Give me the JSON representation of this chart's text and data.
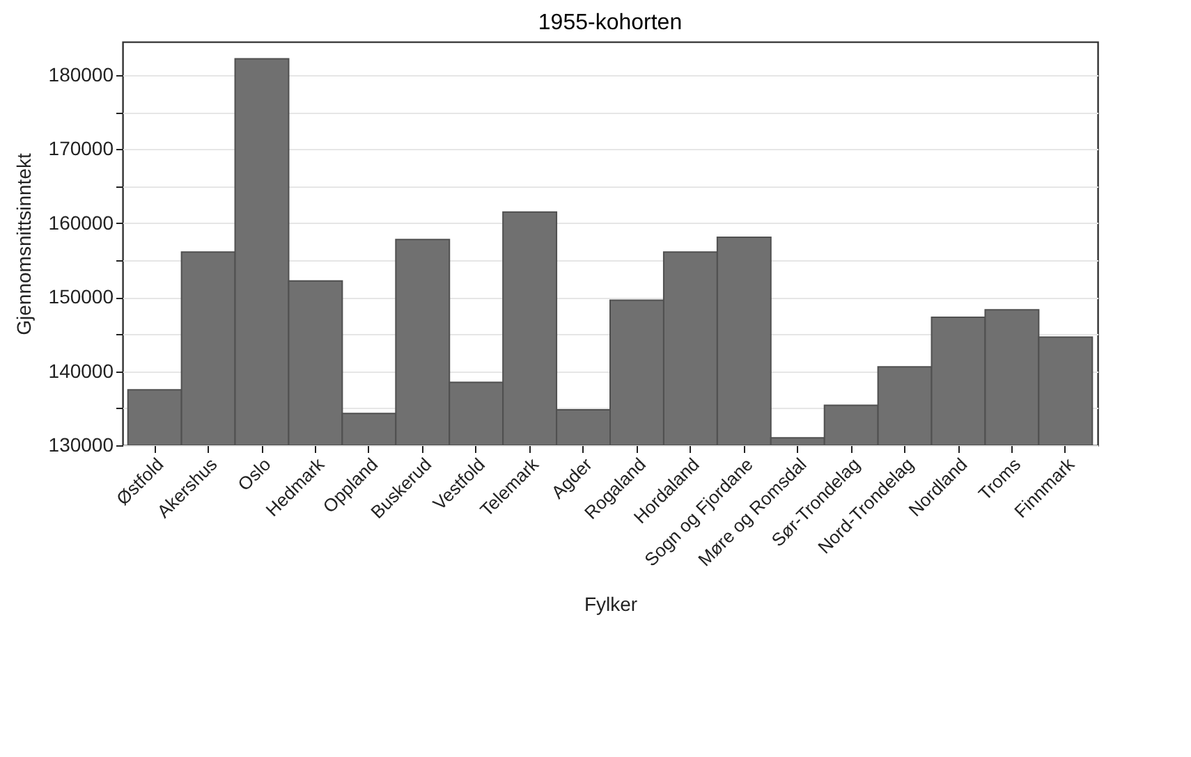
{
  "chart_data": {
    "type": "bar",
    "subtitle": "1955-kohorten",
    "xlabel": "Fylker",
    "ylabel": "Gjennomsnittsinntekt",
    "categories": [
      "Østfold",
      "Akershus",
      "Oslo",
      "Hedmark",
      "Oppland",
      "Buskerud",
      "Vestfold",
      "Telemark",
      "Agder",
      "Rogaland",
      "Hordaland",
      "Sogn og Fjordane",
      "Møre og Romsdal",
      "Sør-Trondelag",
      "Nord-Trondelag",
      "Nordland",
      "Troms",
      "Finnmark"
    ],
    "values": [
      137500,
      156100,
      182200,
      152200,
      134300,
      157800,
      138500,
      161500,
      134800,
      149600,
      156100,
      158100,
      131000,
      135400,
      140600,
      147300,
      148300,
      144600
    ],
    "color": "#707070",
    "ylim": [
      130000,
      184500
    ],
    "yticks": [
      130000,
      {
        "value": 135000,
        "label": null
      },
      140000,
      {
        "value": 145000,
        "label": null
      },
      150000,
      {
        "value": 155000,
        "label": null
      },
      160000,
      {
        "value": 165000,
        "label": null
      },
      170000,
      {
        "value": 175000,
        "label": null
      },
      180000
    ],
    "grid": "y"
  }
}
